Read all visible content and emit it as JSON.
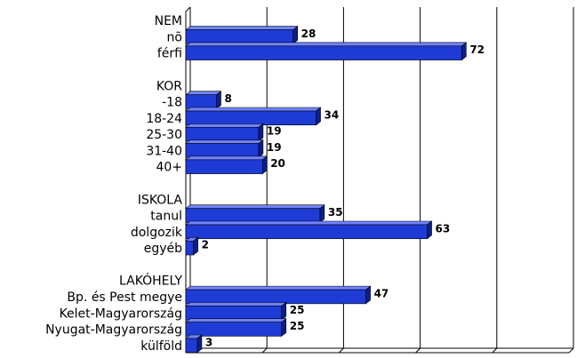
{
  "chart_data": {
    "type": "bar",
    "orientation": "horizontal",
    "categories": [
      "NEM",
      "nõ",
      "férfi",
      null,
      "KOR",
      "-18",
      "18-24",
      "25-30",
      "31-40",
      "40+",
      null,
      "ISKOLA",
      "tanul",
      "dolgozik",
      "egyéb",
      null,
      "LAKÓHELY",
      "Bp. és Pest megye",
      "Kelet-Magyarország",
      "Nyugat-Magyarország",
      "külföld"
    ],
    "values": [
      null,
      28,
      72,
      null,
      null,
      8,
      34,
      19,
      19,
      20,
      null,
      null,
      35,
      63,
      2,
      null,
      null,
      47,
      25,
      25,
      3
    ],
    "color": "#1f3bd6",
    "xlim": [
      0,
      100
    ],
    "xticks": [
      0,
      20,
      40,
      60,
      80,
      100
    ],
    "grid": true
  }
}
